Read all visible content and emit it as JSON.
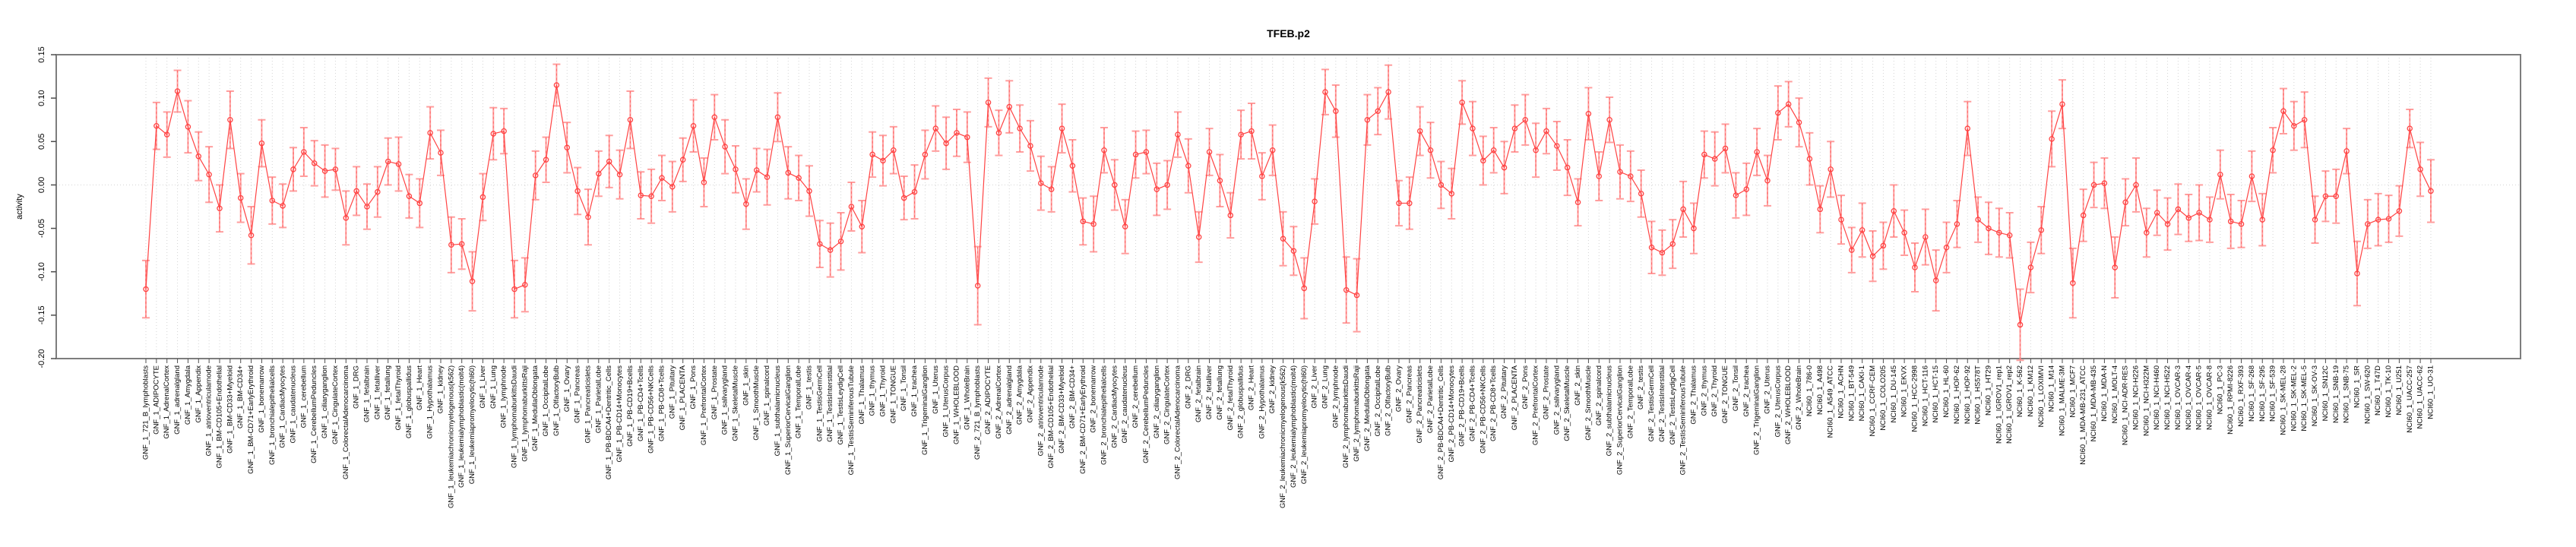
{
  "chart_data": {
    "type": "line",
    "title": "TFEB.p2",
    "xlabel": "",
    "ylabel": "activity",
    "ylim": [
      -0.2,
      0.15
    ],
    "yticks": [
      0.15,
      0.1,
      0.05,
      0.0,
      -0.05,
      -0.1,
      -0.15,
      -0.2
    ],
    "grid": {
      "vertical_per_category": true,
      "horizontal_zero_line": true,
      "style": "dotted"
    },
    "legend_position": "none",
    "marker": "open-circle",
    "error_bars": true,
    "categories": [
      "GNF_1_721_B_lymphoblasts",
      "GNF_1_ADIPOCYTE",
      "GNF_1_AdrenalCortex",
      "GNF_1_adrenalgland",
      "GNF_1_Amygdala",
      "GNF_1_Appendix",
      "GNF_1_atrioventricularnode",
      "GNF_1_BM-CD105+Endothelial",
      "GNF_1_BM-CD33+Myeloid",
      "GNF_1_BM-CD34+",
      "GNF_1_BM-CD71+EarlyErythroid",
      "GNF_1_bonemarrow",
      "GNF_1_bronchialepithelialcells",
      "GNF_1_CardiacMyocytes",
      "GNF_1_caudatenucleus",
      "GNF_1_cerebellum",
      "GNF_1_CerebellumPeduncles",
      "GNF_1_ciliaryganglion",
      "GNF_1_CingulateCortex",
      "GNF_1_ColorectalAdenocarcinoma",
      "GNF_1_DRG",
      "GNF_1_fetalbrain",
      "GNF_1_fetalliver",
      "GNF_1_fetallung",
      "GNF_1_fetalThyroid",
      "GNF_1_globuspallidus",
      "GNF_1_Heart",
      "GNF_1_Hypothalamus",
      "GNF_1_kidney",
      "GNF_1_leukemiachronicmyelogenous(k562)",
      "GNF_1_leukemialymphoblastic(molt4)",
      "GNF_1_leukemiapromyelocytic(hl60)",
      "GNF_1_Liver",
      "GNF_1_Lung",
      "GNF_1_lymphnode",
      "GNF_1_lymphomaburkittsDaudi",
      "GNF_1_lymphomaburkittsRaji",
      "GNF_1_MedullaOblongata",
      "GNF_1_OccipitalLobe",
      "GNF_1_OlfactoryBulb",
      "GNF_1_Ovary",
      "GNF_1_Pancreas",
      "GNF_1_Pancreaticislets",
      "GNF_1_ParietalLobe",
      "GNF_1_PB-BDCA4+Dentritic_Cells",
      "GNF_1_PB-CD14+Monocytes",
      "GNF_1_PB-CD19+Bcells",
      "GNF_1_PB-CD4+Tcells",
      "GNF_1_PB-CD56+NKCells",
      "GNF_1_PB-CD8+Tcells",
      "GNF_1_Pituitary",
      "GNF_1_PLACENTA",
      "GNF_1_Pons",
      "GNF_1_PrefrontalCortex",
      "GNF_1_Prostate",
      "GNF_1_salivarygland",
      "GNF_1_SkeletalMuscle",
      "GNF_1_skin",
      "GNF_1_SmoothMuscle",
      "GNF_1_spinalcord",
      "GNF_1_subthalamicnucleus",
      "GNF_1_SuperiorCervicalGanglion",
      "GNF_1_TemporalLobe",
      "GNF_1_testis",
      "GNF_1_TestisGermCell",
      "GNF_1_TestisInterstitial",
      "GNF_1_TestisLeydigCell",
      "GNF_1_TestisSeminiferousTubule",
      "GNF_1_Thalamus",
      "GNF_1_thymus",
      "GNF_1_Thyroid",
      "GNF_1_TONGUE",
      "GNF_1_Tonsil",
      "GNF_1_trachea",
      "GNF_1_TrigeminalGanglion",
      "GNF_1_Uterus",
      "GNF_1_UterusCorpus",
      "GNF_1_WHOLEBLOOD",
      "GNF_1_WholeBrain",
      "GNF_2_721_B_lymphoblasts",
      "GNF_2_ADIPOCYTE",
      "GNF_2_AdrenalCortex",
      "GNF_2_adrenalgland",
      "GNF_2_Amygdala",
      "GNF_2_Appendix",
      "GNF_2_atrioventricularnode",
      "GNF_2_BM-CD105+Endothelial",
      "GNF_2_BM-CD33+Myeloid",
      "GNF_2_BM-CD34+",
      "GNF_2_BM-CD71+EarlyErythroid",
      "GNF_2_bonemarrow",
      "GNF_2_bronchialepithelialcells",
      "GNF_2_CardiacMyocytes",
      "GNF_2_caudatenucleus",
      "GNF_2_cerebellum",
      "GNF_2_CerebellumPeduncles",
      "GNF_2_ciliaryganglion",
      "GNF_2_CingulateCortex",
      "GNF_2_ColorectalAdenocarcinoma",
      "GNF_2_DRG",
      "GNF_2_fetalbrain",
      "GNF_2_fetalliver",
      "GNF_2_fetallung",
      "GNF_2_fetalThyroid",
      "GNF_2_globuspallidus",
      "GNF_2_Heart",
      "GNF_2_Hypothalamus",
      "GNF_2_kidney",
      "GNF_2_leukemiachronicmyelogenous(k562)",
      "GNF_2_leukemialymphoblastic(molt4)",
      "GNF_2_leukemiapromyelocytic(hl60)",
      "GNF_2_Liver",
      "GNF_2_Lung",
      "GNF_2_lymphnode",
      "GNF_2_lymphomaburkittsDaudi",
      "GNF_2_lymphomaburkittsRaji",
      "GNF_2_MedullaOblongata",
      "GNF_2_OccipitalLobe",
      "GNF_2_OlfactoryBulb",
      "GNF_2_Ovary",
      "GNF_2_Pancreas",
      "GNF_2_Pancreaticislets",
      "GNF_2_ParietalLobe",
      "GNF_2_PB-BDCA4+Dentritic_Cells",
      "GNF_2_PB-CD14+Monocytes",
      "GNF_2_PB-CD19+Bcells",
      "GNF_2_PB-CD4+Tcells",
      "GNF_2_PB-CD56+NKCells",
      "GNF_2_PB-CD8+Tcells",
      "GNF_2_Pituitary",
      "GNF_2_PLACENTA",
      "GNF_2_Pons",
      "GNF_2_PrefrontalCortex",
      "GNF_2_Prostate",
      "GNF_2_salivarygland",
      "GNF_2_SkeletalMuscle",
      "GNF_2_skin",
      "GNF_2_SmoothMuscle",
      "GNF_2_spinalcord",
      "GNF_2_subthalamicnucleus",
      "GNF_2_SuperiorCervicalGanglion",
      "GNF_2_TemporalLobe",
      "GNF_2_testis",
      "GNF_2_TestisGermCell",
      "GNF_2_TestisInterstitial",
      "GNF_2_TestisLeydigCell",
      "GNF_2_TestisSeminiferousTubule",
      "GNF_2_Thalamus",
      "GNF_2_thymus",
      "GNF_2_Thyroid",
      "GNF_2_TONGUE",
      "GNF_2_Tonsil",
      "GNF_2_trachea",
      "GNF_2_TrigeminalGanglion",
      "GNF_2_Uterus",
      "GNF_2_UterusCorpus",
      "GNF_2_WHOLEBLOOD",
      "GNF_2_WholeBrain",
      "NCI60_1_786-0",
      "NCI60_1_A498",
      "NCI60_1_A549_ATCC",
      "NCI60_1_ACHN",
      "NCI60_1_BT-549",
      "NCI60_1_CAKI-1",
      "NCI60_1_CCRF-CEM",
      "NCI60_1_COLO205",
      "NCI60_1_DU-145",
      "NCI60_1_EKVX",
      "NCI60_1_HCC-2998",
      "NCI60_1_HCT-116",
      "NCI60_1_HCT-15",
      "NCI60_1_HL-60",
      "NCI60_1_HOP-62",
      "NCI60_1_HOP-92",
      "NCI60_1_HS578T",
      "NCI60_1_HT29",
      "NCI60_1_IGROV1_rep1",
      "NCI60_1_IGROV1_rep2",
      "NCI60_1_K-562",
      "NCI60_1_KM12",
      "NCI60_1_LOXIMVI",
      "NCI60_1_M14",
      "NCI60_1_MALME-3M",
      "NCI60_1_MCF7",
      "NCI60_1_MDA-MB-231_ATCC",
      "NCI60_1_MDA-MB-435",
      "NCI60_1_MDA-N",
      "NCI60_1_MOLT-4",
      "NCI60_1_NCI-ADR-RES",
      "NCI60_1_NCI-H226",
      "NCI60_1_NCI-H322M",
      "NCI60_1_NCI-H460",
      "NCI60_1_NCI-H522",
      "NCI60_1_OVCAR-3",
      "NCI60_1_OVCAR-4",
      "NCI60_1_OVCAR-5",
      "NCI60_1_OVCAR-8",
      "NCI60_1_PC-3",
      "NCI60_1_RPMI-8226",
      "NCI60_1_RXF-393",
      "NCI60_1_SF-268",
      "NCI60_1_SF-295",
      "NCI60_1_SF-539",
      "NCI60_1_SK-MEL-28",
      "NCI60_1_SK-MEL-2",
      "NCI60_1_SK-MEL-5",
      "NCI60_1_SK-OV-3",
      "NCI60_1_SN12C",
      "NCI60_1_SNB-19",
      "NCI60_1_SNB-75",
      "NCI60_1_SR",
      "NCI60_1_SW-620",
      "NCI60_1_T47D",
      "NCI60_1_TK-10",
      "NCI60_1_U251",
      "NCI60_1_UACC-257",
      "NCI60_1_UACC-62",
      "NCI60_1_UO-31"
    ],
    "values": [
      -0.12,
      0.068,
      0.058,
      0.108,
      0.067,
      0.033,
      0.012,
      -0.027,
      0.075,
      -0.015,
      -0.058,
      0.048,
      -0.018,
      -0.024,
      0.018,
      0.038,
      0.025,
      0.016,
      0.018,
      -0.038,
      -0.007,
      -0.025,
      -0.008,
      0.027,
      0.024,
      -0.013,
      -0.021,
      0.06,
      0.037,
      -0.069,
      -0.068,
      -0.111,
      -0.014,
      0.059,
      0.062,
      -0.12,
      -0.115,
      0.011,
      0.029,
      0.115,
      0.043,
      -0.007,
      -0.037,
      0.013,
      0.027,
      0.012,
      0.075,
      -0.012,
      -0.013,
      0.008,
      -0.002,
      0.029,
      0.068,
      0.003,
      0.078,
      0.044,
      0.018,
      -0.022,
      0.017,
      0.009,
      0.078,
      0.014,
      0.008,
      -0.007,
      -0.068,
      -0.075,
      -0.065,
      -0.025,
      -0.048,
      0.035,
      0.028,
      0.04,
      -0.015,
      -0.008,
      0.035,
      0.065,
      0.048,
      0.06,
      0.055,
      -0.116,
      0.095,
      0.06,
      0.09,
      0.065,
      0.045,
      0.002,
      -0.005,
      0.065,
      0.022,
      -0.042,
      -0.045,
      0.04,
      0.0,
      -0.048,
      0.035,
      0.038,
      -0.005,
      0.0,
      0.058,
      0.022,
      -0.06,
      0.038,
      0.005,
      -0.035,
      0.058,
      0.062,
      0.01,
      0.04,
      -0.062,
      -0.076,
      -0.119,
      -0.019,
      0.107,
      0.085,
      -0.121,
      -0.127,
      0.075,
      0.085,
      0.107,
      -0.021,
      -0.021,
      0.062,
      0.04,
      0.0,
      -0.01,
      0.095,
      0.065,
      0.028,
      0.04,
      0.02,
      0.065,
      0.075,
      0.04,
      0.062,
      0.045,
      0.02,
      -0.02,
      0.082,
      0.01,
      0.075,
      0.015,
      0.01,
      -0.01,
      -0.072,
      -0.078,
      -0.068,
      -0.028,
      -0.05,
      0.035,
      0.03,
      0.042,
      -0.012,
      -0.005,
      0.038,
      0.005,
      0.083,
      0.093,
      0.072,
      0.03,
      -0.028,
      0.018,
      -0.04,
      -0.075,
      -0.052,
      -0.082,
      -0.07,
      -0.03,
      -0.055,
      -0.095,
      -0.06,
      -0.11,
      -0.072,
      -0.045,
      0.065,
      -0.04,
      -0.05,
      -0.055,
      -0.058,
      -0.161,
      -0.095,
      -0.052,
      0.053,
      0.093,
      -0.113,
      -0.035,
      0.0,
      0.002,
      -0.095,
      -0.02,
      0.0,
      -0.055,
      -0.032,
      -0.045,
      -0.028,
      -0.038,
      -0.032,
      -0.04,
      0.012,
      -0.042,
      -0.045,
      0.01,
      -0.04,
      0.04,
      0.085,
      0.068,
      0.075,
      -0.04,
      -0.013,
      -0.013,
      0.039,
      -0.102,
      -0.045,
      -0.04,
      -0.039,
      -0.03,
      0.065,
      0.018,
      -0.007
    ],
    "stderr": [
      0.033,
      0.027,
      0.026,
      0.024,
      0.03,
      0.028,
      0.032,
      0.027,
      0.033,
      0.028,
      0.033,
      0.027,
      0.027,
      0.025,
      0.025,
      0.028,
      0.026,
      0.03,
      0.024,
      0.031,
      0.028,
      0.026,
      0.029,
      0.027,
      0.031,
      0.025,
      0.028,
      0.03,
      0.026,
      0.032,
      0.029,
      0.034,
      0.027,
      0.03,
      0.026,
      0.033,
      0.031,
      0.028,
      0.026,
      0.024,
      0.029,
      0.027,
      0.032,
      0.026,
      0.03,
      0.028,
      0.033,
      0.027,
      0.031,
      0.026,
      0.029,
      0.025,
      0.03,
      0.028,
      0.026,
      0.031,
      0.027,
      0.029,
      0.025,
      0.032,
      0.028,
      0.03,
      0.026,
      0.029,
      0.027,
      0.031,
      0.033,
      0.028,
      0.03,
      0.026,
      0.029,
      0.027,
      0.025,
      0.031,
      0.028,
      0.026,
      0.03,
      0.027,
      0.029,
      0.045,
      0.028,
      0.026,
      0.03,
      0.027,
      0.029,
      0.031,
      0.026,
      0.028,
      0.03,
      0.027,
      0.032,
      0.026,
      0.029,
      0.031,
      0.027,
      0.025,
      0.03,
      0.028,
      0.026,
      0.031,
      0.029,
      0.027,
      0.03,
      0.026,
      0.028,
      0.032,
      0.027,
      0.029,
      0.031,
      0.028,
      0.035,
      0.026,
      0.026,
      0.03,
      0.038,
      0.042,
      0.029,
      0.027,
      0.031,
      0.026,
      0.03,
      0.028,
      0.032,
      0.027,
      0.029,
      0.025,
      0.031,
      0.028,
      0.026,
      0.03,
      0.027,
      0.029,
      0.031,
      0.026,
      0.028,
      0.032,
      0.027,
      0.03,
      0.028,
      0.026,
      0.031,
      0.029,
      0.027,
      0.03,
      0.026,
      0.028,
      0.032,
      0.029,
      0.027,
      0.031,
      0.028,
      0.026,
      0.03,
      0.027,
      0.029,
      0.031,
      0.026,
      0.028,
      0.03,
      0.027,
      0.032,
      0.028,
      0.026,
      0.031,
      0.029,
      0.027,
      0.03,
      0.026,
      0.028,
      0.032,
      0.035,
      0.029,
      0.027,
      0.031,
      0.026,
      0.03,
      0.028,
      0.026,
      0.041,
      0.029,
      0.027,
      0.032,
      0.028,
      0.04,
      0.03,
      0.026,
      0.029,
      0.035,
      0.027,
      0.031,
      0.028,
      0.026,
      0.03,
      0.029,
      0.027,
      0.032,
      0.026,
      0.028,
      0.031,
      0.027,
      0.029,
      0.03,
      0.026,
      0.026,
      0.028,
      0.032,
      0.027,
      0.029,
      0.031,
      0.026,
      0.037,
      0.028,
      0.03,
      0.027,
      0.029,
      0.022,
      0.031,
      0.036
    ]
  },
  "colors": {
    "series": "#ff4343",
    "error_bar": "#ff9e9e",
    "grid": "#d4d4d4",
    "box": "#7d7d7d",
    "tick": "#4d4d4d",
    "text": "#000000",
    "background": "#ffffff"
  }
}
